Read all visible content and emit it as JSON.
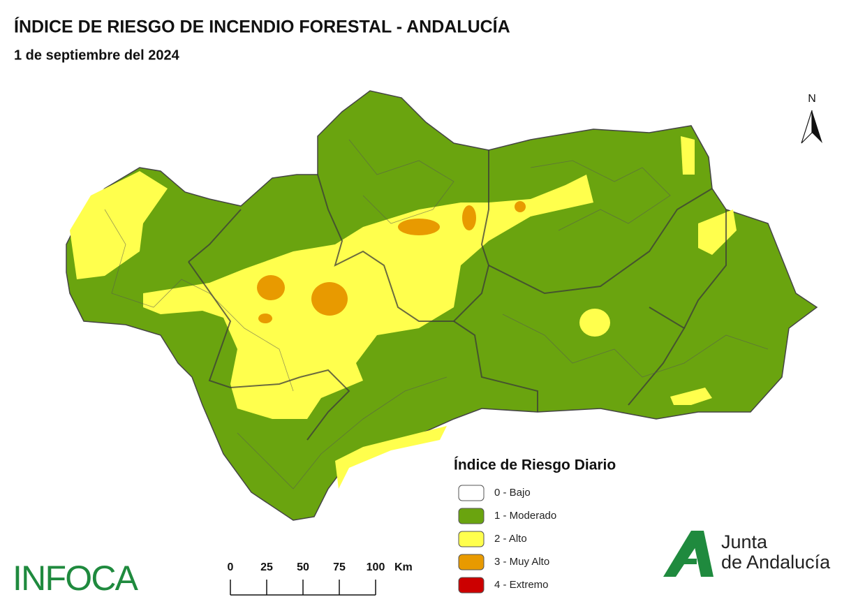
{
  "header": {
    "title": "ÍNDICE DE RIESGO DE INCENDIO FORESTAL - ANDALUCÍA",
    "subtitle": "1 de septiembre del 2024"
  },
  "legend": {
    "title": "Índice de Riesgo Diario",
    "items": [
      {
        "label": "0 - Bajo",
        "color": "#ffffff"
      },
      {
        "label": "1 - Moderado",
        "color": "#6aa40f"
      },
      {
        "label": "2 - Alto",
        "color": "#ffff4d"
      },
      {
        "label": "3 - Muy Alto",
        "color": "#e89a00"
      },
      {
        "label": "4 - Extremo",
        "color": "#cc0000"
      }
    ]
  },
  "scale_bar": {
    "ticks": [
      0,
      25,
      50,
      75,
      100
    ],
    "unit": "Km"
  },
  "north_arrow": "N",
  "logos": {
    "infoca": "INFOCA",
    "junta": [
      "Junta",
      "de Andalucía"
    ]
  }
}
